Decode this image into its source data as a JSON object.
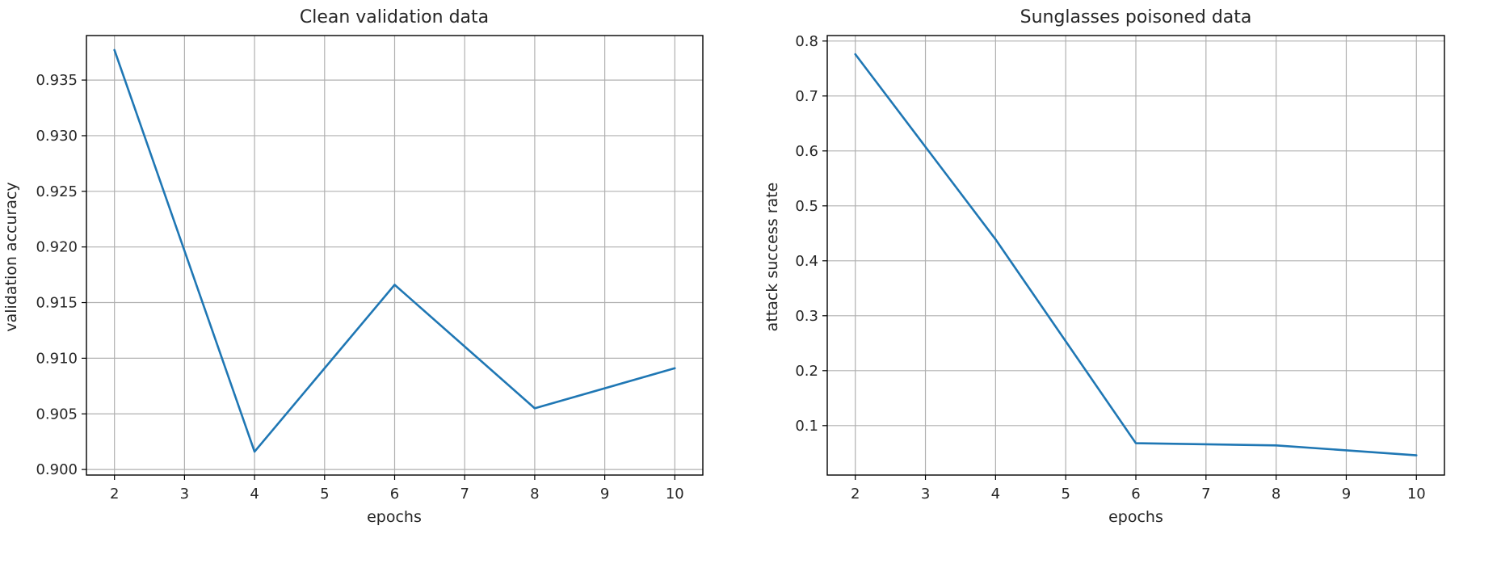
{
  "chart_data": [
    {
      "type": "line",
      "title": "Clean validation data",
      "xlabel": "epochs",
      "ylabel": "validation accuracy",
      "xlim": [
        1.6,
        10.4
      ],
      "ylim": [
        0.8995,
        0.939
      ],
      "grid": true,
      "x_ticks": [
        2,
        3,
        4,
        5,
        6,
        7,
        8,
        9,
        10
      ],
      "y_ticks": [
        0.9,
        0.905,
        0.91,
        0.915,
        0.92,
        0.925,
        0.93,
        0.935
      ],
      "y_tick_labels": [
        "0.900",
        "0.905",
        "0.910",
        "0.915",
        "0.920",
        "0.925",
        "0.930",
        "0.935"
      ],
      "series": [
        {
          "color": "#1f77b4",
          "x": [
            2,
            4,
            6,
            8,
            10
          ],
          "y": [
            0.9377,
            0.9016,
            0.9166,
            0.9055,
            0.9091
          ]
        }
      ]
    },
    {
      "type": "line",
      "title": "Sunglasses poisoned data",
      "xlabel": "epochs",
      "ylabel": "attack success rate",
      "xlim": [
        1.6,
        10.4
      ],
      "ylim": [
        0.01,
        0.81
      ],
      "grid": true,
      "x_ticks": [
        2,
        3,
        4,
        5,
        6,
        7,
        8,
        9,
        10
      ],
      "y_ticks": [
        0.1,
        0.2,
        0.3,
        0.4,
        0.5,
        0.6,
        0.7,
        0.8
      ],
      "y_tick_labels": [
        "0.1",
        "0.2",
        "0.3",
        "0.4",
        "0.5",
        "0.6",
        "0.7",
        "0.8"
      ],
      "series": [
        {
          "color": "#1f77b4",
          "x": [
            2,
            4,
            6,
            8,
            10
          ],
          "y": [
            0.776,
            0.439,
            0.068,
            0.064,
            0.046
          ]
        }
      ]
    }
  ]
}
